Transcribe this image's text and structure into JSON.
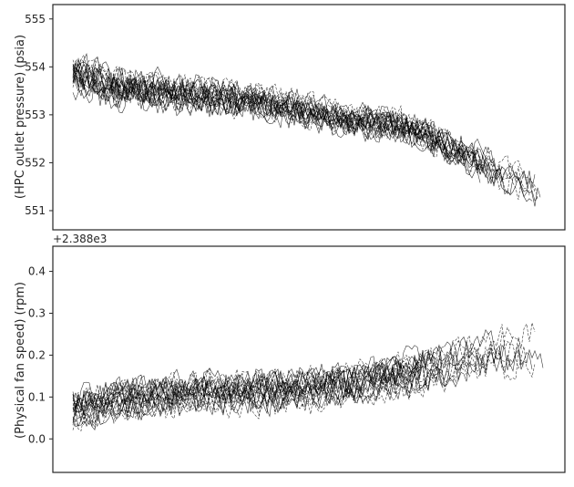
{
  "chart_data": [
    {
      "type": "line",
      "ylabel": "(HPC outlet pressure) (psia)",
      "offset_text": "",
      "ylim": [
        550.6,
        555.3
      ],
      "yticks": [
        551,
        552,
        553,
        554,
        555
      ],
      "xlabel": "",
      "grid": false,
      "legend": "none",
      "line_color": "#000000",
      "series_count": 20,
      "trend": {
        "x": [
          0,
          0.1,
          0.2,
          0.3,
          0.4,
          0.5,
          0.6,
          0.7,
          0.8,
          0.9,
          1.0
        ],
        "mean": [
          553.9,
          553.6,
          553.5,
          553.4,
          553.3,
          553.1,
          552.9,
          552.8,
          552.4,
          551.9,
          551.4
        ],
        "spread": [
          1.2,
          1.3,
          1.2,
          1.2,
          1.1,
          1.1,
          1.0,
          1.1,
          1.1,
          1.2,
          1.3
        ]
      }
    },
    {
      "type": "line",
      "ylabel": "(Physical fan speed) (rpm)",
      "offset_text": "+2.388e3",
      "ylim": [
        -0.08,
        0.46
      ],
      "yticks": [
        0.0,
        0.1,
        0.2,
        0.3,
        0.4
      ],
      "ytick_labels": [
        "0.0",
        "0.1",
        "0.2",
        "0.3",
        "0.4"
      ],
      "xlabel": "",
      "grid": false,
      "legend": "none",
      "line_color": "#000000",
      "series_count": 20,
      "trend": {
        "x": [
          0,
          0.1,
          0.2,
          0.3,
          0.4,
          0.5,
          0.6,
          0.7,
          0.8,
          0.9,
          1.0
        ],
        "mean": [
          0.07,
          0.09,
          0.1,
          0.11,
          0.11,
          0.12,
          0.13,
          0.15,
          0.18,
          0.21,
          0.23
        ],
        "spread": [
          0.13,
          0.13,
          0.13,
          0.13,
          0.13,
          0.13,
          0.13,
          0.14,
          0.14,
          0.16,
          0.17
        ]
      }
    }
  ]
}
